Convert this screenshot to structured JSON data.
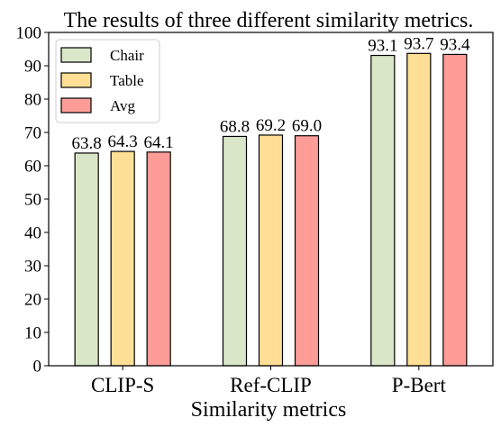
{
  "chart_data": {
    "type": "bar",
    "title": "The results of three different similarity metrics.",
    "xlabel": "Similarity metrics",
    "ylabel": "",
    "categories": [
      "CLIP-S",
      "Ref-CLIP",
      "P-Bert"
    ],
    "series": [
      {
        "name": "Chair",
        "values": [
          63.8,
          68.8,
          93.1
        ],
        "color": "#d9e6c8"
      },
      {
        "name": "Table",
        "values": [
          64.3,
          69.2,
          93.7
        ],
        "color": "#fedf95"
      },
      {
        "name": "Avg",
        "values": [
          64.1,
          69.0,
          93.4
        ],
        "color": "#fe9c97"
      }
    ],
    "value_labels": [
      [
        "63.8",
        "68.8",
        "93.1"
      ],
      [
        "64.3",
        "69.2",
        "93.7"
      ],
      [
        "64.1",
        "69.0",
        "93.4"
      ]
    ],
    "ylim": [
      0,
      100
    ],
    "yticks": [
      0,
      10,
      20,
      30,
      40,
      50,
      60,
      70,
      80,
      90,
      100
    ],
    "ytick_labels": [
      "0",
      "10",
      "20",
      "30",
      "40",
      "50",
      "60",
      "70",
      "80",
      "90",
      "100"
    ],
    "grid": false,
    "legend_position": "top-left",
    "edge_color": "#000000"
  }
}
